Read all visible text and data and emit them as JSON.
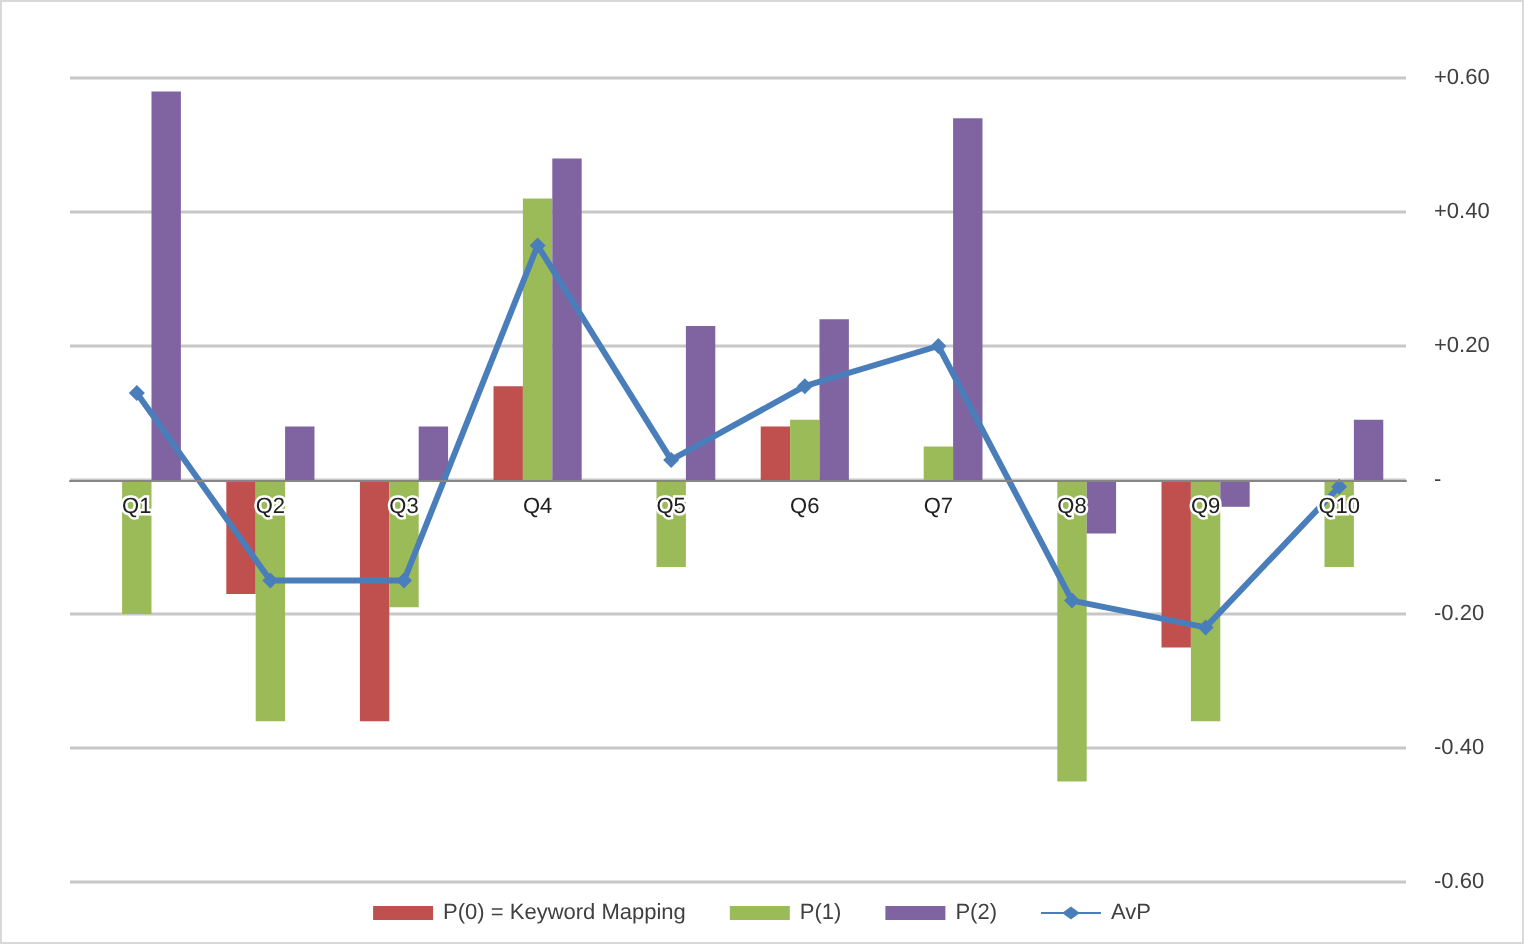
{
  "chart_data": {
    "type": "bar",
    "categories": [
      "Q1",
      "Q2",
      "Q3",
      "Q4",
      "Q5",
      "Q6",
      "Q7",
      "Q8",
      "Q9",
      "Q10"
    ],
    "series": [
      {
        "name": "P(0) = Keyword Mapping",
        "color": "#c0504d",
        "values": [
          null,
          -0.17,
          -0.36,
          0.14,
          null,
          0.08,
          null,
          null,
          -0.25,
          null
        ]
      },
      {
        "name": "P(1)",
        "color": "#9bbb59",
        "values": [
          -0.2,
          -0.36,
          -0.19,
          0.42,
          -0.13,
          0.09,
          0.05,
          -0.45,
          -0.36,
          -0.13
        ]
      },
      {
        "name": "P(2)",
        "color": "#8064a2",
        "values": [
          0.58,
          0.08,
          0.08,
          0.48,
          0.23,
          0.24,
          0.54,
          -0.08,
          -0.04,
          0.09
        ]
      },
      {
        "name": "AvP",
        "type": "line",
        "color": "#4a7ebb",
        "marker": "diamond",
        "values": [
          0.13,
          -0.15,
          -0.15,
          0.35,
          0.03,
          0.14,
          0.2,
          -0.18,
          -0.22,
          -0.01
        ]
      }
    ],
    "ylim": [
      -0.6,
      0.6
    ],
    "yticks": [
      {
        "value": -0.6,
        "label": "-0.60"
      },
      {
        "value": -0.4,
        "label": "-0.40"
      },
      {
        "value": -0.2,
        "label": "-0.20"
      },
      {
        "value": 0,
        "label": "-"
      },
      {
        "value": 0.2,
        "label": "+0.20"
      },
      {
        "value": 0.4,
        "label": "+0.40"
      },
      {
        "value": 0.6,
        "label": "+0.60"
      }
    ],
    "grid": "y",
    "legend": "bottom"
  }
}
